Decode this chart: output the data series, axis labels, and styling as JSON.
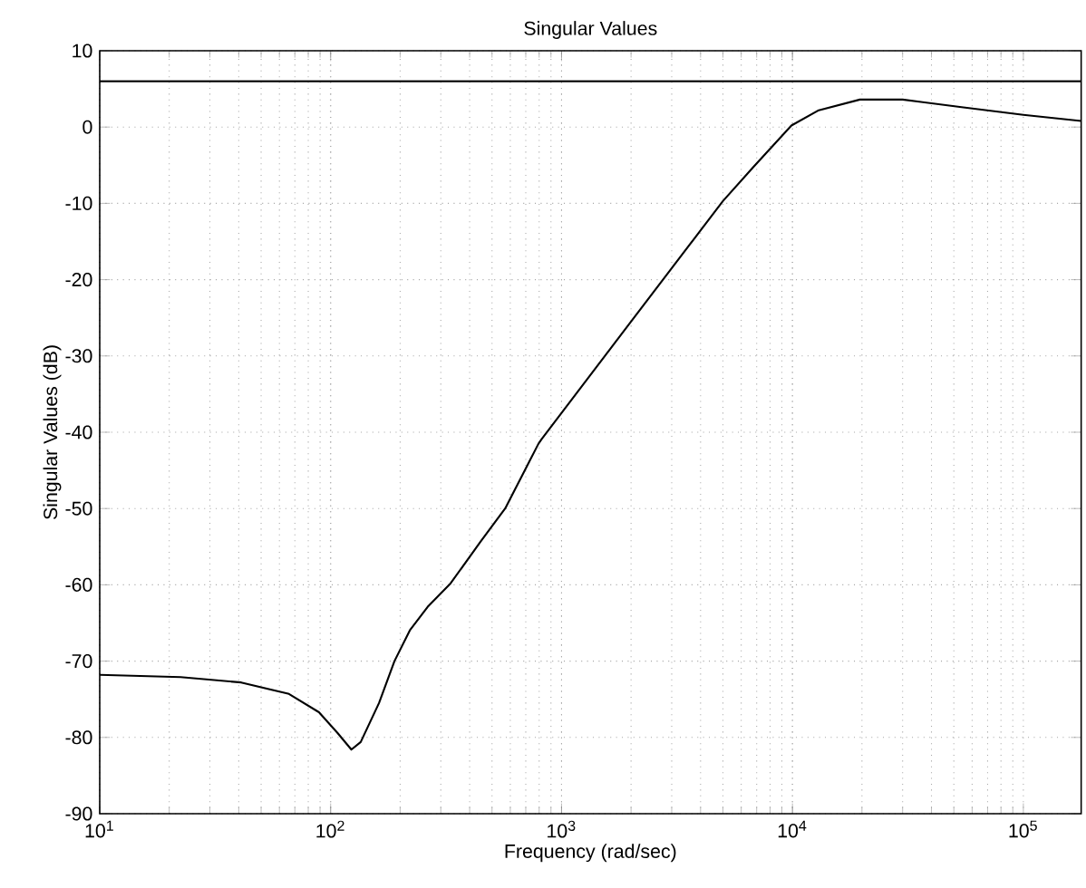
{
  "chart_data": {
    "type": "line",
    "title": "Singular Values",
    "xlabel": "Frequency (rad/sec)",
    "ylabel": "Singular Values (dB)",
    "log": "x",
    "grid": true,
    "marker": "none",
    "line_style": "solid",
    "xlim": [
      10,
      178000
    ],
    "ylim": [
      -90,
      10
    ],
    "xticks": [
      {
        "value": 10,
        "label": "10$^{1}$"
      },
      {
        "value": 100,
        "label": "10$^{2}$"
      },
      {
        "value": 1000,
        "label": "10$^{3}$"
      },
      {
        "value": 10000,
        "label": "10$^{4}$"
      },
      {
        "value": 100000,
        "label": "10$^{5}$"
      }
    ],
    "yticks": [
      -90,
      -80,
      -70,
      -60,
      -50,
      -40,
      -30,
      -20,
      -10,
      0,
      10
    ],
    "ref_lines": [
      {
        "axis": "y",
        "value": 6,
        "color": "#000000",
        "line_style": "solid"
      }
    ],
    "series": [
      {
        "color": "#000000",
        "x": [
          10,
          22.4,
          41,
          66,
          89,
          107,
          123,
          135,
          162,
          189,
          221,
          263,
          331,
          447,
          570,
          795,
          820,
          2000,
          5000,
          6750,
          9900,
          13000,
          19600,
          30000,
          54000,
          100000,
          178000
        ],
        "values": [
          -71.8,
          -72.1,
          -72.8,
          -74.3,
          -76.7,
          -79.4,
          -81.6,
          -80.6,
          -75.5,
          -70,
          -65.9,
          -62.9,
          -59.8,
          -54.3,
          -50,
          -41.5,
          -40.9,
          -25.5,
          -9.7,
          -5.3,
          0.2,
          2.2,
          3.6,
          3.6,
          2.6,
          1.6,
          0.8
        ]
      }
    ]
  }
}
